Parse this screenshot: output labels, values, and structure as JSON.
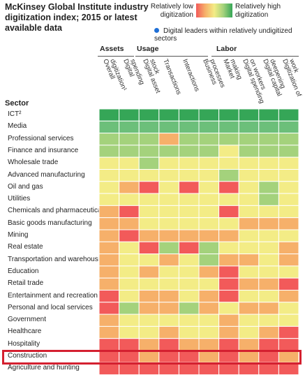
{
  "title": "McKinsey Global Institute industry digitization index; 2015 or latest available data",
  "legend": {
    "low_label": "Relatively low digitization",
    "high_label": "Relatively high digitization",
    "leaders_label": "Digital leaders within relatively undigitized sectors",
    "colors": [
      "#f25a5a",
      "#f6b06a",
      "#f3ec86",
      "#a4d27c",
      "#6cbf7a",
      "#35a657"
    ]
  },
  "groups": [
    {
      "label": "Assets"
    },
    {
      "label": "Usage"
    },
    {
      "label": "Labor"
    }
  ],
  "sector_header": "Sector",
  "chart_data": {
    "type": "heatmap",
    "title": "McKinsey Global Institute industry digitization index; 2015 or latest available data",
    "scale": "1 = relatively low digitization, 5 = relatively high digitization",
    "columns": [
      "Overall digitization¹",
      "Digital spending",
      "Digital asset stock",
      "Transactions",
      "Interactions",
      "Business processes",
      "Market making",
      "Digital spending on workers",
      "Digital capital deepening",
      "Digitization of work"
    ],
    "rows": [
      {
        "sector": "ICT²",
        "leader": false,
        "values": [
          5,
          5,
          5,
          5,
          5,
          5,
          5,
          5,
          5,
          5
        ]
      },
      {
        "sector": "Media",
        "leader": false,
        "values": [
          4,
          4,
          4,
          4,
          4,
          4,
          4,
          4,
          4,
          4
        ]
      },
      {
        "sector": "Professional services",
        "leader": false,
        "values": [
          4,
          4,
          4,
          2,
          4,
          4,
          4,
          4,
          4,
          4
        ]
      },
      {
        "sector": "Finance and insurance",
        "leader": false,
        "values": [
          4,
          4,
          4,
          4,
          4,
          4,
          3,
          4,
          4,
          4
        ]
      },
      {
        "sector": "Wholesale trade",
        "leader": false,
        "values": [
          3,
          3,
          4,
          3,
          3,
          3,
          3,
          3,
          3,
          3
        ]
      },
      {
        "sector": "Advanced manufacturing",
        "leader": false,
        "values": [
          3,
          3,
          3,
          3,
          3,
          3,
          4,
          3,
          3,
          3
        ]
      },
      {
        "sector": "Oil and gas",
        "leader": false,
        "values": [
          3,
          2,
          1,
          3,
          1,
          3,
          1,
          3,
          4,
          3
        ]
      },
      {
        "sector": "Utilities",
        "leader": false,
        "values": [
          3,
          3,
          3,
          3,
          3,
          3,
          3,
          3,
          4,
          3
        ]
      },
      {
        "sector": "Chemicals and pharmaceuticals",
        "leader": false,
        "values": [
          2,
          1,
          3,
          3,
          3,
          3,
          1,
          3,
          3,
          3
        ]
      },
      {
        "sector": "Basic goods manufacturing",
        "leader": false,
        "values": [
          2,
          2,
          3,
          3,
          3,
          3,
          3,
          2,
          2,
          2
        ]
      },
      {
        "sector": "Mining",
        "leader": false,
        "values": [
          2,
          1,
          2,
          2,
          2,
          2,
          2,
          3,
          3,
          3
        ]
      },
      {
        "sector": "Real estate",
        "leader": false,
        "values": [
          2,
          3,
          1,
          4,
          1,
          4,
          3,
          3,
          3,
          2
        ]
      },
      {
        "sector": "Transportation and warehousing",
        "leader": true,
        "values": [
          2,
          3,
          3,
          2,
          3,
          4,
          2,
          2,
          3,
          2
        ]
      },
      {
        "sector": "Education",
        "leader": true,
        "values": [
          2,
          3,
          2,
          3,
          3,
          2,
          1,
          3,
          3,
          3
        ]
      },
      {
        "sector": "Retail trade",
        "leader": true,
        "values": [
          2,
          3,
          3,
          3,
          3,
          3,
          1,
          2,
          2,
          1
        ]
      },
      {
        "sector": "Entertainment and recreation",
        "leader": false,
        "values": [
          1,
          3,
          2,
          2,
          3,
          2,
          1,
          3,
          3,
          2
        ]
      },
      {
        "sector": "Personal and local services",
        "leader": false,
        "values": [
          1,
          4,
          2,
          2,
          4,
          2,
          3,
          2,
          2,
          3
        ]
      },
      {
        "sector": "Government",
        "leader": true,
        "values": [
          2,
          3,
          3,
          3,
          3,
          3,
          2,
          3,
          3,
          3
        ]
      },
      {
        "sector": "Healthcare",
        "leader": false,
        "values": [
          2,
          3,
          3,
          2,
          3,
          3,
          2,
          3,
          2,
          1
        ]
      },
      {
        "sector": "Hospitality",
        "leader": true,
        "values": [
          1,
          1,
          2,
          1,
          2,
          2,
          1,
          2,
          1,
          1
        ]
      },
      {
        "sector": "Construction",
        "leader": false,
        "values": [
          1,
          1,
          2,
          1,
          1,
          2,
          1,
          2,
          1,
          2
        ]
      },
      {
        "sector": "Agriculture and hunting",
        "leader": false,
        "values": [
          1,
          1,
          1,
          1,
          1,
          1,
          1,
          1,
          1,
          1
        ]
      }
    ],
    "highlighted_row": "Construction"
  }
}
